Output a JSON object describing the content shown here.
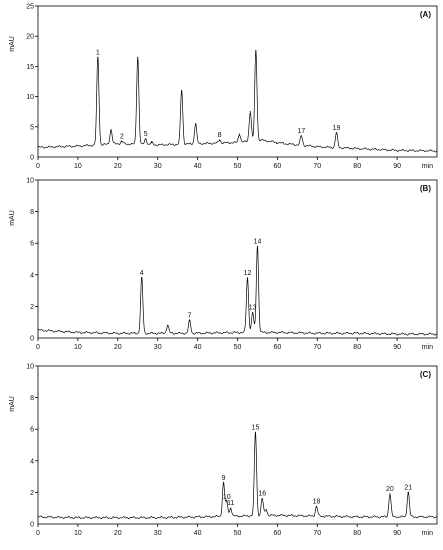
{
  "chart_data": [
    {
      "type": "line",
      "panel_label": "(A)",
      "ylabel": "mAU",
      "xlabel": "min",
      "xlim": [
        0,
        100
      ],
      "ylim": [
        0,
        25
      ],
      "xticks": [
        0,
        10,
        20,
        30,
        40,
        50,
        60,
        70,
        80,
        90
      ],
      "yticks": [
        5,
        10,
        15,
        20,
        25
      ],
      "baseline": [
        [
          0,
          1.6
        ],
        [
          10,
          1.8
        ],
        [
          20,
          2.2
        ],
        [
          30,
          2.0
        ],
        [
          40,
          2.2
        ],
        [
          50,
          2.4
        ],
        [
          56,
          2.8
        ],
        [
          62,
          2.2
        ],
        [
          70,
          1.7
        ],
        [
          80,
          1.4
        ],
        [
          90,
          1.1
        ],
        [
          100,
          1.0
        ]
      ],
      "peaks": [
        {
          "x": 15.0,
          "h": 16.5,
          "label": "1"
        },
        {
          "x": 18.3,
          "h": 4.5,
          "label": ""
        },
        {
          "x": 21.0,
          "h": 2.6,
          "label": "2"
        },
        {
          "x": 25.0,
          "h": 16.5,
          "label": ""
        },
        {
          "x": 27.0,
          "h": 3.0,
          "label": "5"
        },
        {
          "x": 28.5,
          "h": 2.4,
          "label": ""
        },
        {
          "x": 36.0,
          "h": 11.0,
          "label": ""
        },
        {
          "x": 39.5,
          "h": 5.5,
          "label": ""
        },
        {
          "x": 45.5,
          "h": 2.8,
          "label": "8"
        },
        {
          "x": 50.5,
          "h": 3.8,
          "label": ""
        },
        {
          "x": 53.2,
          "h": 7.5,
          "label": ""
        },
        {
          "x": 54.6,
          "h": 17.6,
          "label": ""
        },
        {
          "x": 59.8,
          "h": 2.3,
          "label": ""
        },
        {
          "x": 66.0,
          "h": 3.5,
          "label": "17"
        },
        {
          "x": 74.8,
          "h": 4.0,
          "label": "19"
        }
      ]
    },
    {
      "type": "line",
      "panel_label": "(B)",
      "ylabel": "mAU",
      "xlabel": "min",
      "xlim": [
        0,
        100
      ],
      "ylim": [
        0,
        10
      ],
      "xticks": [
        0,
        10,
        20,
        30,
        40,
        50,
        60,
        70,
        80,
        90
      ],
      "yticks": [
        2,
        4,
        6,
        8,
        10
      ],
      "baseline": [
        [
          0,
          0.5
        ],
        [
          10,
          0.35
        ],
        [
          20,
          0.3
        ],
        [
          30,
          0.3
        ],
        [
          40,
          0.3
        ],
        [
          50,
          0.35
        ],
        [
          60,
          0.35
        ],
        [
          70,
          0.3
        ],
        [
          80,
          0.3
        ],
        [
          90,
          0.25
        ],
        [
          100,
          0.25
        ]
      ],
      "peaks": [
        {
          "x": 26.0,
          "h": 3.8,
          "label": "4"
        },
        {
          "x": 32.5,
          "h": 0.8,
          "label": ""
        },
        {
          "x": 38.0,
          "h": 1.1,
          "label": "7"
        },
        {
          "x": 52.5,
          "h": 3.8,
          "label": "12"
        },
        {
          "x": 53.8,
          "h": 1.6,
          "label": "13"
        },
        {
          "x": 55.0,
          "h": 5.8,
          "label": "14"
        }
      ]
    },
    {
      "type": "line",
      "panel_label": "(C)",
      "ylabel": "mAU",
      "xlabel": "min",
      "xlim": [
        0,
        100
      ],
      "ylim": [
        0,
        10
      ],
      "xticks": [
        0,
        10,
        20,
        30,
        40,
        50,
        60,
        70,
        80,
        90
      ],
      "yticks": [
        2,
        4,
        6,
        8,
        10
      ],
      "baseline": [
        [
          0,
          0.45
        ],
        [
          10,
          0.4
        ],
        [
          20,
          0.4
        ],
        [
          30,
          0.4
        ],
        [
          40,
          0.45
        ],
        [
          50,
          0.5
        ],
        [
          60,
          0.55
        ],
        [
          70,
          0.5
        ],
        [
          80,
          0.45
        ],
        [
          90,
          0.45
        ],
        [
          100,
          0.45
        ]
      ],
      "peaks": [
        {
          "x": 46.5,
          "h": 2.6,
          "label": "9"
        },
        {
          "x": 47.3,
          "h": 1.4,
          "label": "10"
        },
        {
          "x": 48.3,
          "h": 1.0,
          "label": "11"
        },
        {
          "x": 54.5,
          "h": 5.8,
          "label": "15"
        },
        {
          "x": 56.2,
          "h": 1.6,
          "label": "16"
        },
        {
          "x": 57.2,
          "h": 0.9,
          "label": ""
        },
        {
          "x": 69.8,
          "h": 1.1,
          "label": "18"
        },
        {
          "x": 88.2,
          "h": 1.9,
          "label": "20"
        },
        {
          "x": 92.8,
          "h": 2.0,
          "label": "21"
        }
      ]
    }
  ]
}
